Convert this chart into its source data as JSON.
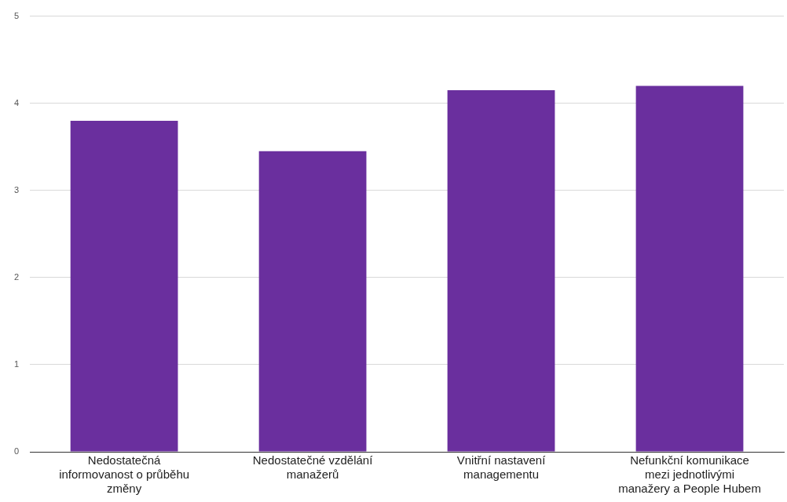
{
  "chart_data": {
    "type": "bar",
    "categories": [
      "Nedostatečná informovanost o průběhu změny",
      "Nedostatečné vzdělání manažerů",
      "Vnitřní nastavení managementu",
      "Nefunkční komunikace mezi jednotlivými manažery a People Hubem"
    ],
    "values": [
      3.8,
      3.45,
      4.15,
      4.2
    ],
    "color": "#6a2f9e",
    "ylim": [
      0,
      5
    ],
    "yticks": [
      0,
      1,
      2,
      3,
      4,
      5
    ],
    "grid": "y",
    "legend": false
  }
}
